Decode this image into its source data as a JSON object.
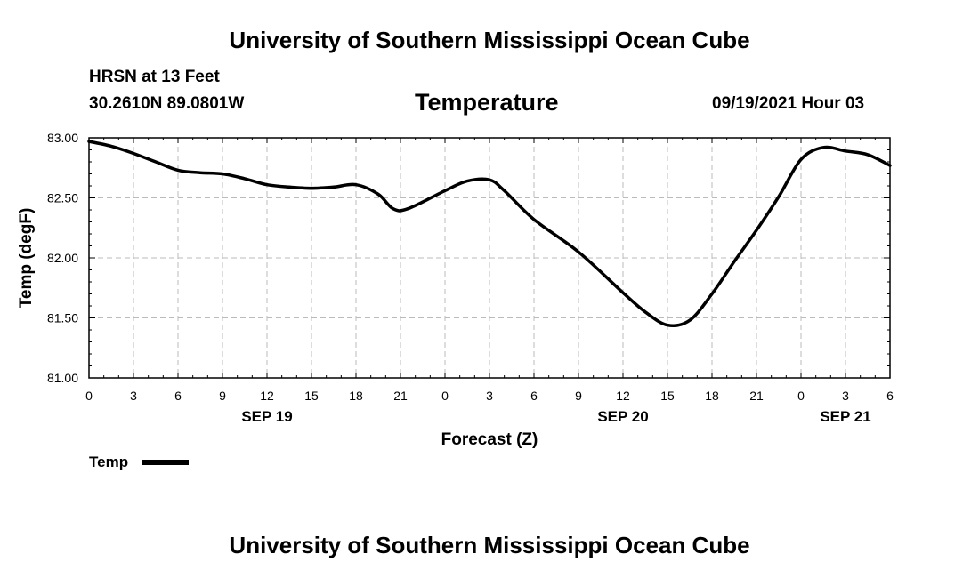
{
  "header": {
    "title": "University of Southern Mississippi Ocean Cube",
    "station": "HRSN at 13 Feet",
    "coords": "30.2610N  89.0801W",
    "parameter": "Temperature",
    "timestamp": "09/19/2021 Hour 03"
  },
  "footer": {
    "title": "University of Southern Mississippi Ocean Cube"
  },
  "colors": {
    "line": "#000000",
    "grid": "#bbbbbb"
  },
  "chart_data": {
    "type": "line",
    "title": "Temperature",
    "xlabel": "Forecast (Z)",
    "ylabel": "Temp (degF)",
    "xlim": [
      0,
      54
    ],
    "ylim": [
      81.0,
      83.0
    ],
    "grid": true,
    "y_ticks": [
      "81.00",
      "81.50",
      "82.00",
      "82.50",
      "83.00"
    ],
    "y_tick_values": [
      81.0,
      81.5,
      82.0,
      82.5,
      83.0
    ],
    "x_ticks": [
      "0",
      "3",
      "6",
      "9",
      "12",
      "15",
      "18",
      "21",
      "0",
      "3",
      "6",
      "9",
      "12",
      "15",
      "18",
      "21",
      "0",
      "3",
      "6"
    ],
    "day_labels": [
      {
        "label": "SEP 19",
        "hour": 12
      },
      {
        "label": "SEP 20",
        "hour": 36
      },
      {
        "label": "SEP 21",
        "hour": 51
      }
    ],
    "legend": {
      "label": "Temp",
      "position": "bottom-left"
    },
    "series": [
      {
        "name": "Temp",
        "x": [
          0,
          1.5,
          3,
          4.5,
          6,
          7.5,
          9,
          10.5,
          12,
          13.5,
          15,
          16.5,
          18,
          19.5,
          20.5,
          21.5,
          24,
          25.5,
          27,
          28,
          30,
          33,
          36,
          37.5,
          39,
          40.5,
          42,
          43.5,
          45,
          46.5,
          48,
          49.5,
          51,
          52.5,
          54
        ],
        "y": [
          82.97,
          82.93,
          82.87,
          82.8,
          82.73,
          82.71,
          82.7,
          82.66,
          82.61,
          82.59,
          82.58,
          82.59,
          82.61,
          82.53,
          82.41,
          82.41,
          82.56,
          82.64,
          82.65,
          82.56,
          82.32,
          82.05,
          81.71,
          81.55,
          81.44,
          81.48,
          81.7,
          81.97,
          82.23,
          82.51,
          82.82,
          82.92,
          82.89,
          82.86,
          82.77
        ]
      }
    ]
  }
}
